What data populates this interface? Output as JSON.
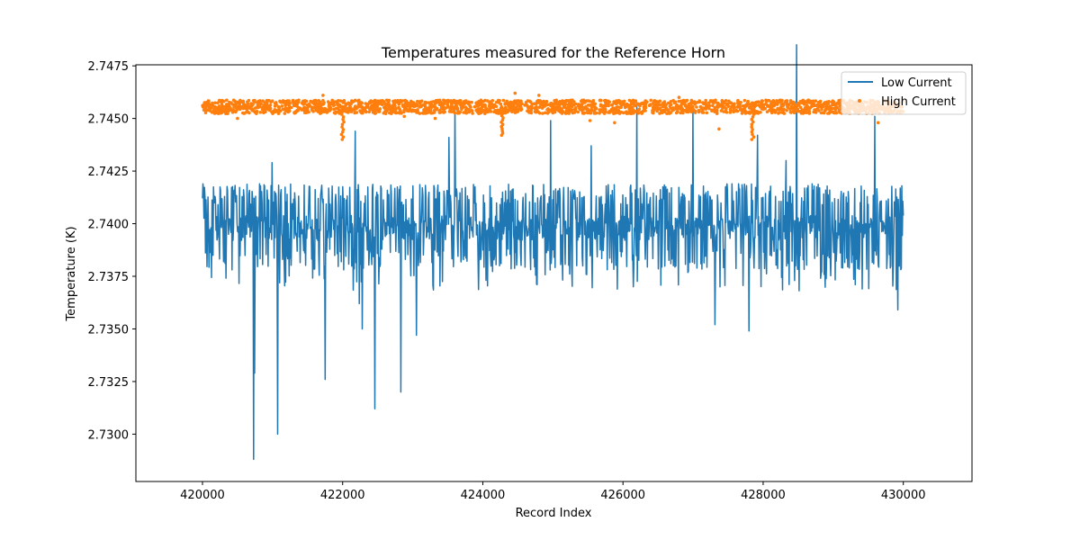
{
  "chart_data": {
    "type": "line",
    "title": "Temperatures measured for the Reference Horn",
    "xlabel": "Record Index",
    "ylabel": "Temperature (K)",
    "xlim": [
      419050,
      430980
    ],
    "ylim": [
      2.72775,
      2.74755
    ],
    "xticks": [
      420000,
      422000,
      424000,
      426000,
      428000,
      430000
    ],
    "xtick_labels": [
      "420000",
      "422000",
      "424000",
      "426000",
      "428000",
      "430000"
    ],
    "yticks": [
      2.73,
      2.7325,
      2.735,
      2.7375,
      2.74,
      2.7425,
      2.745,
      2.7475
    ],
    "ytick_labels": [
      "2.7300",
      "2.7325",
      "2.7350",
      "2.7375",
      "2.7400",
      "2.7425",
      "2.7450",
      "2.7475"
    ],
    "legend_position": "top-right",
    "series": [
      {
        "name": "Low Current",
        "kind": "line",
        "color": "#1f77b4",
        "x_start": 420000,
        "x_end": 430000,
        "baseline": 2.7398,
        "band_low": 2.7388,
        "band_high": 2.7412,
        "spikes": [
          {
            "x": 420730,
            "y": 2.7288
          },
          {
            "x": 420740,
            "y": 2.7329
          },
          {
            "x": 421070,
            "y": 2.73
          },
          {
            "x": 420990,
            "y": 2.7429
          },
          {
            "x": 421750,
            "y": 2.7326
          },
          {
            "x": 422180,
            "y": 2.7444
          },
          {
            "x": 422240,
            "y": 2.7362
          },
          {
            "x": 422280,
            "y": 2.735
          },
          {
            "x": 422460,
            "y": 2.7312
          },
          {
            "x": 422830,
            "y": 2.732
          },
          {
            "x": 423050,
            "y": 2.7347
          },
          {
            "x": 423520,
            "y": 2.7441
          },
          {
            "x": 423600,
            "y": 2.7456
          },
          {
            "x": 424970,
            "y": 2.7449
          },
          {
            "x": 425550,
            "y": 2.7437
          },
          {
            "x": 426200,
            "y": 2.7457
          },
          {
            "x": 427000,
            "y": 2.7456
          },
          {
            "x": 427310,
            "y": 2.7352
          },
          {
            "x": 427800,
            "y": 2.7349
          },
          {
            "x": 427920,
            "y": 2.7442
          },
          {
            "x": 428330,
            "y": 2.743
          },
          {
            "x": 428480,
            "y": 2.7485
          },
          {
            "x": 429590,
            "y": 2.7451
          },
          {
            "x": 429920,
            "y": 2.7359
          }
        ]
      },
      {
        "name": "High Current",
        "kind": "scatter",
        "color": "#ff7f0e",
        "x_start": 420000,
        "x_end": 430000,
        "baseline": 2.74555,
        "band_low": 2.74535,
        "band_high": 2.74575,
        "dips": [
          {
            "x": 422000,
            "y": 2.744
          },
          {
            "x": 424280,
            "y": 2.7442
          },
          {
            "x": 427850,
            "y": 2.744
          }
        ],
        "outliers": [
          {
            "x": 421720,
            "y": 2.7461
          },
          {
            "x": 424460,
            "y": 2.7462
          },
          {
            "x": 422880,
            "y": 2.7451
          },
          {
            "x": 423320,
            "y": 2.745
          },
          {
            "x": 425530,
            "y": 2.7449
          },
          {
            "x": 425880,
            "y": 2.7448
          },
          {
            "x": 427370,
            "y": 2.7445
          },
          {
            "x": 429640,
            "y": 2.7448
          },
          {
            "x": 420500,
            "y": 2.745
          },
          {
            "x": 424800,
            "y": 2.7461
          },
          {
            "x": 426800,
            "y": 2.746
          }
        ]
      }
    ]
  }
}
